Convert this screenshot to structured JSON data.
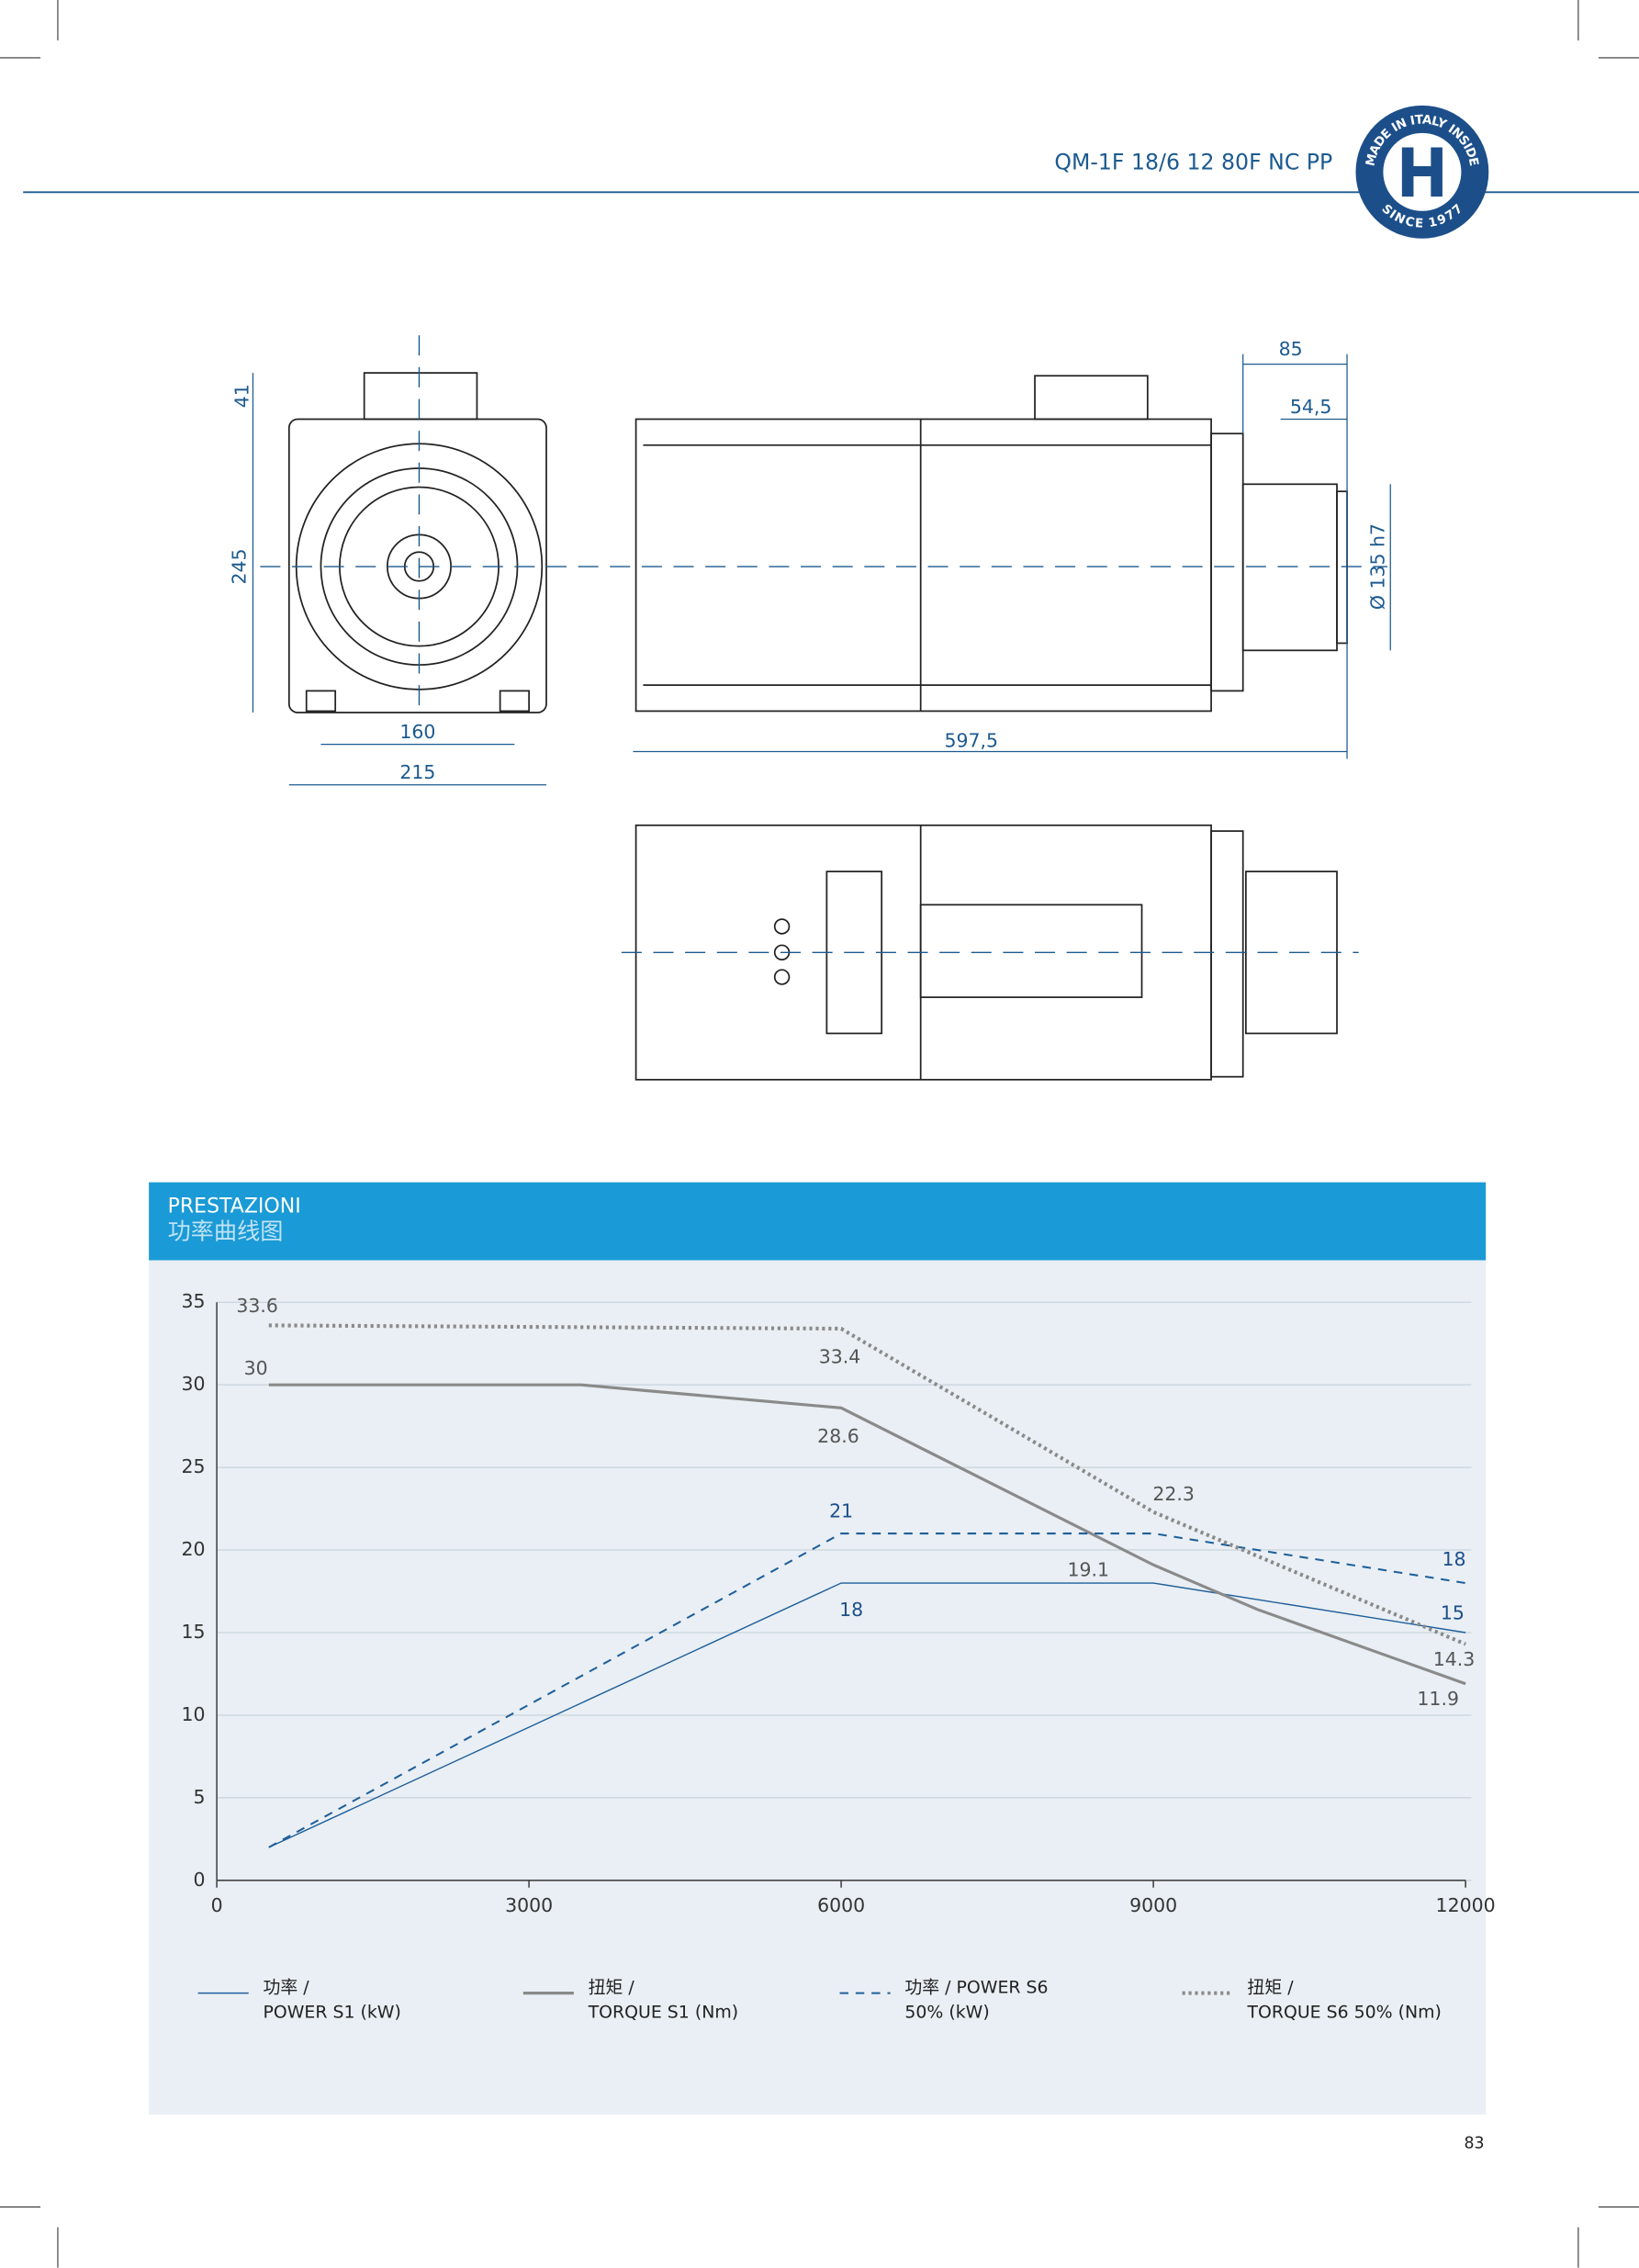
{
  "header": {
    "model": "QM-1F 18/6 12 80F NC PP",
    "logo": {
      "top": "MADE IN ITALY INSIDE",
      "bottom": "SINCE 1977"
    }
  },
  "drawing": {
    "dimensions": {
      "top_height": "41",
      "height": "245",
      "foot_width": "160",
      "width": "215",
      "rear_length": "85",
      "shaft_length": "54,5",
      "length": "597,5",
      "shaft_diameter": "Ø 135 h7"
    }
  },
  "section": {
    "title": "PRESTAZIONI",
    "subtitle": "功率曲线图"
  },
  "chart_data": {
    "type": "line",
    "xlim": [
      0,
      12000
    ],
    "xticks": [
      0,
      3000,
      6000,
      9000,
      12000
    ],
    "ylim": [
      0,
      35
    ],
    "yticks": [
      0,
      5,
      10,
      15,
      20,
      25,
      30,
      35
    ],
    "grid": true,
    "series": [
      {
        "name": "功率 /\nPOWER S1 (kW)",
        "color": "#1f5f9a",
        "line_style": "solid",
        "x": [
          500,
          6000,
          9000,
          12000
        ],
        "values": [
          2,
          18,
          18,
          15
        ],
        "value_labels": [
          null,
          "18",
          null,
          "15"
        ]
      },
      {
        "name": "扭矩 /\nTORQUE S1 (Nm)",
        "color": "#8a8a8a",
        "line_style": "thick",
        "x": [
          500,
          3500,
          6000,
          9000,
          10000,
          12000
        ],
        "values": [
          30,
          30,
          28.6,
          19.1,
          16.4,
          11.9
        ],
        "value_labels": [
          "30",
          null,
          "28.6",
          "19.1",
          null,
          "11.9"
        ]
      },
      {
        "name": "功率 / POWER S6\n50% (kW)",
        "color": "#1f5f9a",
        "line_style": "dashed",
        "x": [
          500,
          6000,
          9000,
          12000
        ],
        "values": [
          2,
          21,
          21,
          18
        ],
        "value_labels": [
          null,
          "21",
          null,
          "18"
        ]
      },
      {
        "name": "扭矩 /\nTORQUE S6 50% (Nm)",
        "color": "#8a8a8a",
        "line_style": "dotted",
        "x": [
          500,
          6000,
          9000,
          12000
        ],
        "values": [
          33.6,
          33.4,
          22.3,
          14.3
        ],
        "value_labels": [
          "33.6",
          "33.4",
          "22.3",
          "14.3"
        ]
      }
    ]
  },
  "page_number": "83"
}
